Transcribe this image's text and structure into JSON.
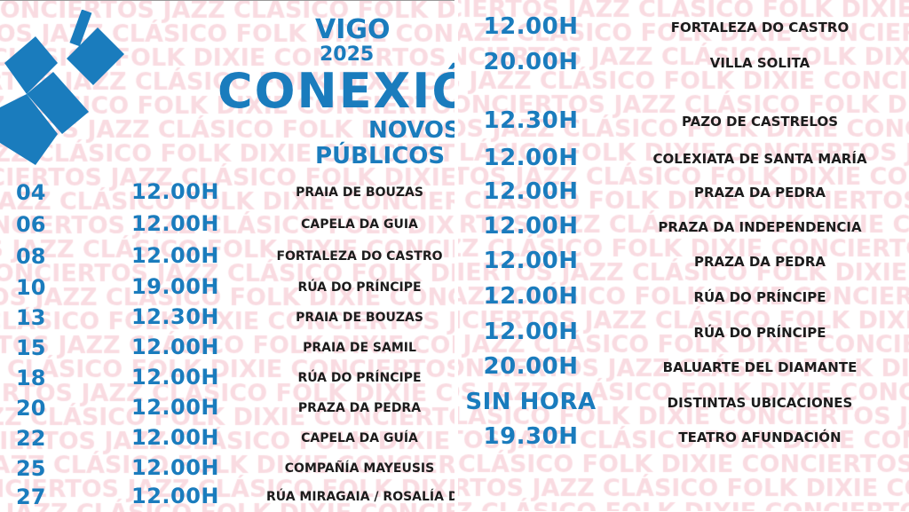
{
  "watermark": "CONCIERTOS JAZZ CLÁSICO FOLK DIXIE",
  "brand_color": "#1a7cbd",
  "header": {
    "city": "VIGO",
    "year": "2025",
    "title": "CONEXIÓN",
    "line1": "NOVOS",
    "line2": "PÚBLICOS"
  },
  "left_rows": [
    {
      "day": "04",
      "time": "12.00H",
      "venue": "PRAIA DE BOUZAS"
    },
    {
      "day": "06",
      "time": "12.00H",
      "venue": "CAPELA DA GUIA"
    },
    {
      "day": "08",
      "time": "12.00H",
      "venue": "FORTALEZA DO CASTRO"
    },
    {
      "day": "10",
      "time": "19.00H",
      "venue": "RÚA DO PRÍNCIPE"
    },
    {
      "day": "13",
      "time": "12.30H",
      "venue": "PRAIA DE BOUZAS"
    },
    {
      "day": "15",
      "time": "12.00H",
      "venue": "PRAIA DE SAMIL"
    },
    {
      "day": "18",
      "time": "12.00H",
      "venue": "RÚA DO PRÍNCIPE"
    },
    {
      "day": "20",
      "time": "12.00H",
      "venue": "PRAZA DA PEDRA"
    },
    {
      "day": "22",
      "time": "12.00H",
      "venue": "CAPELA DA GUÍA"
    },
    {
      "day": "25",
      "time": "12.00H",
      "venue": "COMPAÑÍA MAYEUSIS"
    },
    {
      "day": "27",
      "time": "12.00H",
      "venue": "RÚA MIRAGAIA / ROSALÍA DE CA"
    }
  ],
  "right_rows": [
    {
      "time": "12.00H",
      "venue": "FORTALEZA DO CASTRO"
    },
    {
      "time": "20.00H",
      "venue": "VILLA SOLITA"
    },
    {
      "time": "12.30H",
      "venue": "PAZO DE CASTRELOS"
    },
    {
      "time": "12.00H",
      "venue": "COLEXIATA DE SANTA MARÍA"
    },
    {
      "time": "12.00H",
      "venue": "PRAZA DA PEDRA"
    },
    {
      "time": "12.00H",
      "venue": "PRAZA DA INDEPENDENCIA"
    },
    {
      "time": "12.00H",
      "venue": "PRAZA DA PEDRA"
    },
    {
      "time": "12.00H",
      "venue": "RÚA DO PRÍNCIPE"
    },
    {
      "time": "12.00H",
      "venue": "RÚA DO PRÍNCIPE"
    },
    {
      "time": "20.00H",
      "venue": "BALUARTE DEL DIAMANTE"
    },
    {
      "time": "SIN HORA",
      "venue": "DISTINTAS UBICACIONES"
    },
    {
      "time": "19.30H",
      "venue": "TEATRO AFUNDACIÓN"
    }
  ]
}
